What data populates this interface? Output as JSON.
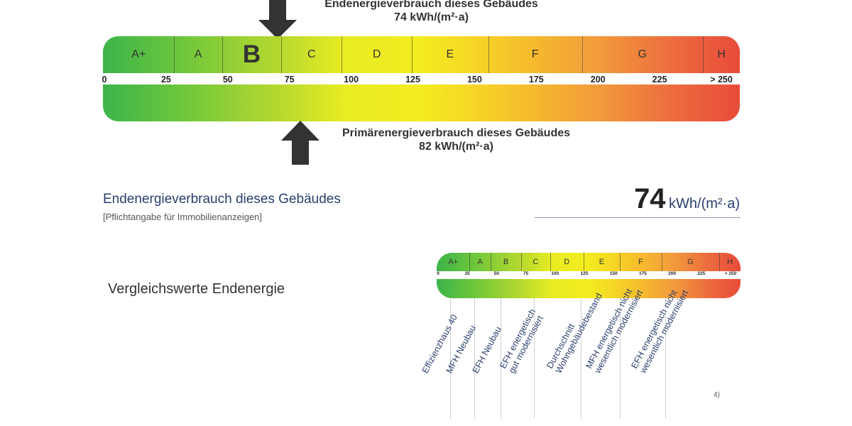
{
  "top_scale": {
    "end_energy_label": "Endenergieverbrauch dieses Gebäudes",
    "end_energy_value": "74 kWh/(m²·a)",
    "primary_energy_label": "Primärenergieverbrauch dieses Gebäudes",
    "primary_energy_value": "82 kWh/(m²·a)",
    "classes": [
      "A+",
      "A",
      "B",
      "C",
      "D",
      "E",
      "F",
      "G",
      "H"
    ],
    "highlighted_class": "B",
    "ticks": [
      "0",
      "25",
      "50",
      "75",
      "100",
      "125",
      "150",
      "175",
      "200",
      "225",
      "> 250"
    ]
  },
  "summary": {
    "title": "Endenergieverbrauch dieses Gebäudes",
    "subtitle": "[Pflichtangabe für Immobilienanzeigen]",
    "value": "74",
    "unit": "kWh/(m²·a)"
  },
  "comparison": {
    "label": "Vergleichswerte Endenergie",
    "classes": [
      "A+",
      "A",
      "B",
      "C",
      "D",
      "E",
      "F",
      "G",
      "H"
    ],
    "ticks": [
      "0",
      "25",
      "50",
      "75",
      "100",
      "125",
      "150",
      "175",
      "200",
      "225",
      "> 250"
    ],
    "references": [
      "Effizienzhaus 40",
      "MFH Neubau",
      "EFH Neubau",
      "EFH energetisch\ngut modernisiert",
      "Durchschnitt\nWohngebäudebestand",
      "MFH energetisch nicht\nwesentlich modernisiert",
      "EFH energetisch nicht\nwesentlich modernisiert"
    ],
    "footnote": "4)"
  },
  "colors": {
    "green": "#3cb44a",
    "yellow": "#f4ec20",
    "red": "#e84b3a",
    "arrow": "#333333",
    "title_blue": "#2a3f6c"
  }
}
